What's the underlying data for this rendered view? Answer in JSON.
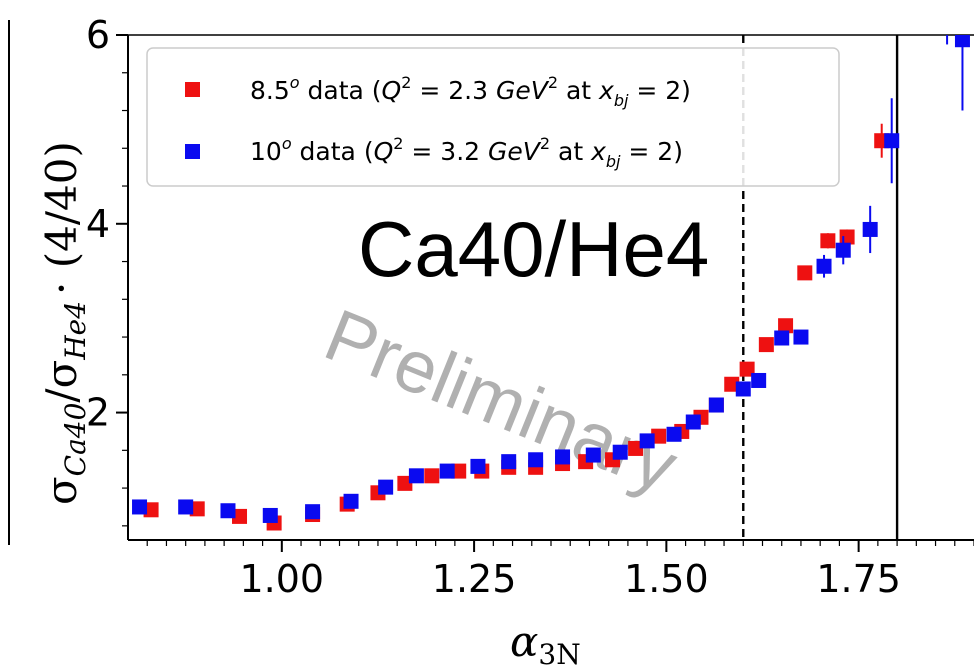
{
  "chart_data": {
    "type": "scatter",
    "title": "",
    "annotation": "Ca40/He4",
    "watermark": "Preliminary",
    "xlabel": "α",
    "xlabel_sub": "3N",
    "ylabel": "σ",
    "ylabel_sub1": "Ca40",
    "ylabel_mid": "/σ",
    "ylabel_sub2": "He4",
    "ylabel_tail": "· (4/40)",
    "xlim": [
      0.8,
      1.9
    ],
    "ylim": [
      0.65,
      6.0
    ],
    "x_ticks": [
      {
        "v": 1.0,
        "label": "1.00"
      },
      {
        "v": 1.25,
        "label": "1.25"
      },
      {
        "v": 1.5,
        "label": "1.50"
      },
      {
        "v": 1.75,
        "label": "1.75"
      }
    ],
    "y_ticks": [
      {
        "v": 2,
        "label": "2"
      },
      {
        "v": 4,
        "label": "4"
      },
      {
        "v": 6,
        "label": "6"
      }
    ],
    "vlines": [
      {
        "x": 1.6,
        "style": "dashed"
      },
      {
        "x": 1.8,
        "style": "solid"
      }
    ],
    "legend": {
      "placement": "top-left",
      "entries": [
        {
          "series_index": 0,
          "pre": "8.5",
          "sup": "o",
          "mid": " data (",
          "q": "Q",
          "qsup": "2",
          "eq": " = 2.3 ",
          "unit": "GeV",
          "usup": "2",
          "at": " at ",
          "xb": "x",
          "xsub": "bj",
          "tail": " = 2)"
        },
        {
          "series_index": 1,
          "pre": "10",
          "sup": "o",
          "mid": " data (",
          "q": "Q",
          "qsup": "2",
          "eq": " = 3.2 ",
          "unit": "GeV",
          "usup": "2",
          "at": " at ",
          "xb": "x",
          "xsub": "bj",
          "tail": " = 2)"
        }
      ]
    },
    "series": [
      {
        "color": "#ee1111",
        "points": [
          {
            "x": 0.83,
            "y": 0.97
          },
          {
            "x": 0.89,
            "y": 0.98
          },
          {
            "x": 0.945,
            "y": 0.9
          },
          {
            "x": 0.99,
            "y": 0.83
          },
          {
            "x": 1.04,
            "y": 0.92
          },
          {
            "x": 1.085,
            "y": 1.03
          },
          {
            "x": 1.125,
            "y": 1.15
          },
          {
            "x": 1.16,
            "y": 1.25
          },
          {
            "x": 1.195,
            "y": 1.33
          },
          {
            "x": 1.23,
            "y": 1.38
          },
          {
            "x": 1.26,
            "y": 1.38
          },
          {
            "x": 1.295,
            "y": 1.42
          },
          {
            "x": 1.33,
            "y": 1.42
          },
          {
            "x": 1.365,
            "y": 1.46
          },
          {
            "x": 1.395,
            "y": 1.48
          },
          {
            "x": 1.43,
            "y": 1.5
          },
          {
            "x": 1.46,
            "y": 1.62
          },
          {
            "x": 1.49,
            "y": 1.75
          },
          {
            "x": 1.52,
            "y": 1.8
          },
          {
            "x": 1.545,
            "y": 1.95
          },
          {
            "x": 1.565,
            "y": 2.08
          },
          {
            "x": 1.585,
            "y": 2.3
          },
          {
            "x": 1.605,
            "y": 2.46
          },
          {
            "x": 1.63,
            "y": 2.72
          },
          {
            "x": 1.655,
            "y": 2.92
          },
          {
            "x": 1.68,
            "y": 3.48
          },
          {
            "x": 1.71,
            "y": 3.82,
            "err": 0.08
          },
          {
            "x": 1.735,
            "y": 3.86,
            "err": 0.08
          },
          {
            "x": 1.78,
            "y": 4.88,
            "err": 0.18
          }
        ]
      },
      {
        "color": "#0a0af0",
        "points": [
          {
            "x": 0.815,
            "y": 1.0
          },
          {
            "x": 0.875,
            "y": 1.0
          },
          {
            "x": 0.93,
            "y": 0.96
          },
          {
            "x": 0.985,
            "y": 0.91
          },
          {
            "x": 1.04,
            "y": 0.95
          },
          {
            "x": 1.09,
            "y": 1.06
          },
          {
            "x": 1.135,
            "y": 1.21
          },
          {
            "x": 1.175,
            "y": 1.33
          },
          {
            "x": 1.215,
            "y": 1.38
          },
          {
            "x": 1.255,
            "y": 1.43
          },
          {
            "x": 1.295,
            "y": 1.48
          },
          {
            "x": 1.33,
            "y": 1.5
          },
          {
            "x": 1.365,
            "y": 1.53
          },
          {
            "x": 1.405,
            "y": 1.55
          },
          {
            "x": 1.44,
            "y": 1.58
          },
          {
            "x": 1.475,
            "y": 1.7
          },
          {
            "x": 1.51,
            "y": 1.77
          },
          {
            "x": 1.535,
            "y": 1.9
          },
          {
            "x": 1.565,
            "y": 2.08
          },
          {
            "x": 1.6,
            "y": 2.25
          },
          {
            "x": 1.62,
            "y": 2.34
          },
          {
            "x": 1.65,
            "y": 2.79
          },
          {
            "x": 1.675,
            "y": 2.8
          },
          {
            "x": 1.705,
            "y": 3.55,
            "err": 0.12
          },
          {
            "x": 1.73,
            "y": 3.72,
            "err": 0.15
          },
          {
            "x": 1.765,
            "y": 3.94,
            "err": 0.25
          },
          {
            "x": 1.793,
            "y": 4.88,
            "err": 0.45
          },
          {
            "x": 1.885,
            "y": 5.95,
            "err": 0.75
          },
          {
            "x": 1.865,
            "y": 6.2,
            "err": 0.3
          }
        ]
      }
    ]
  }
}
